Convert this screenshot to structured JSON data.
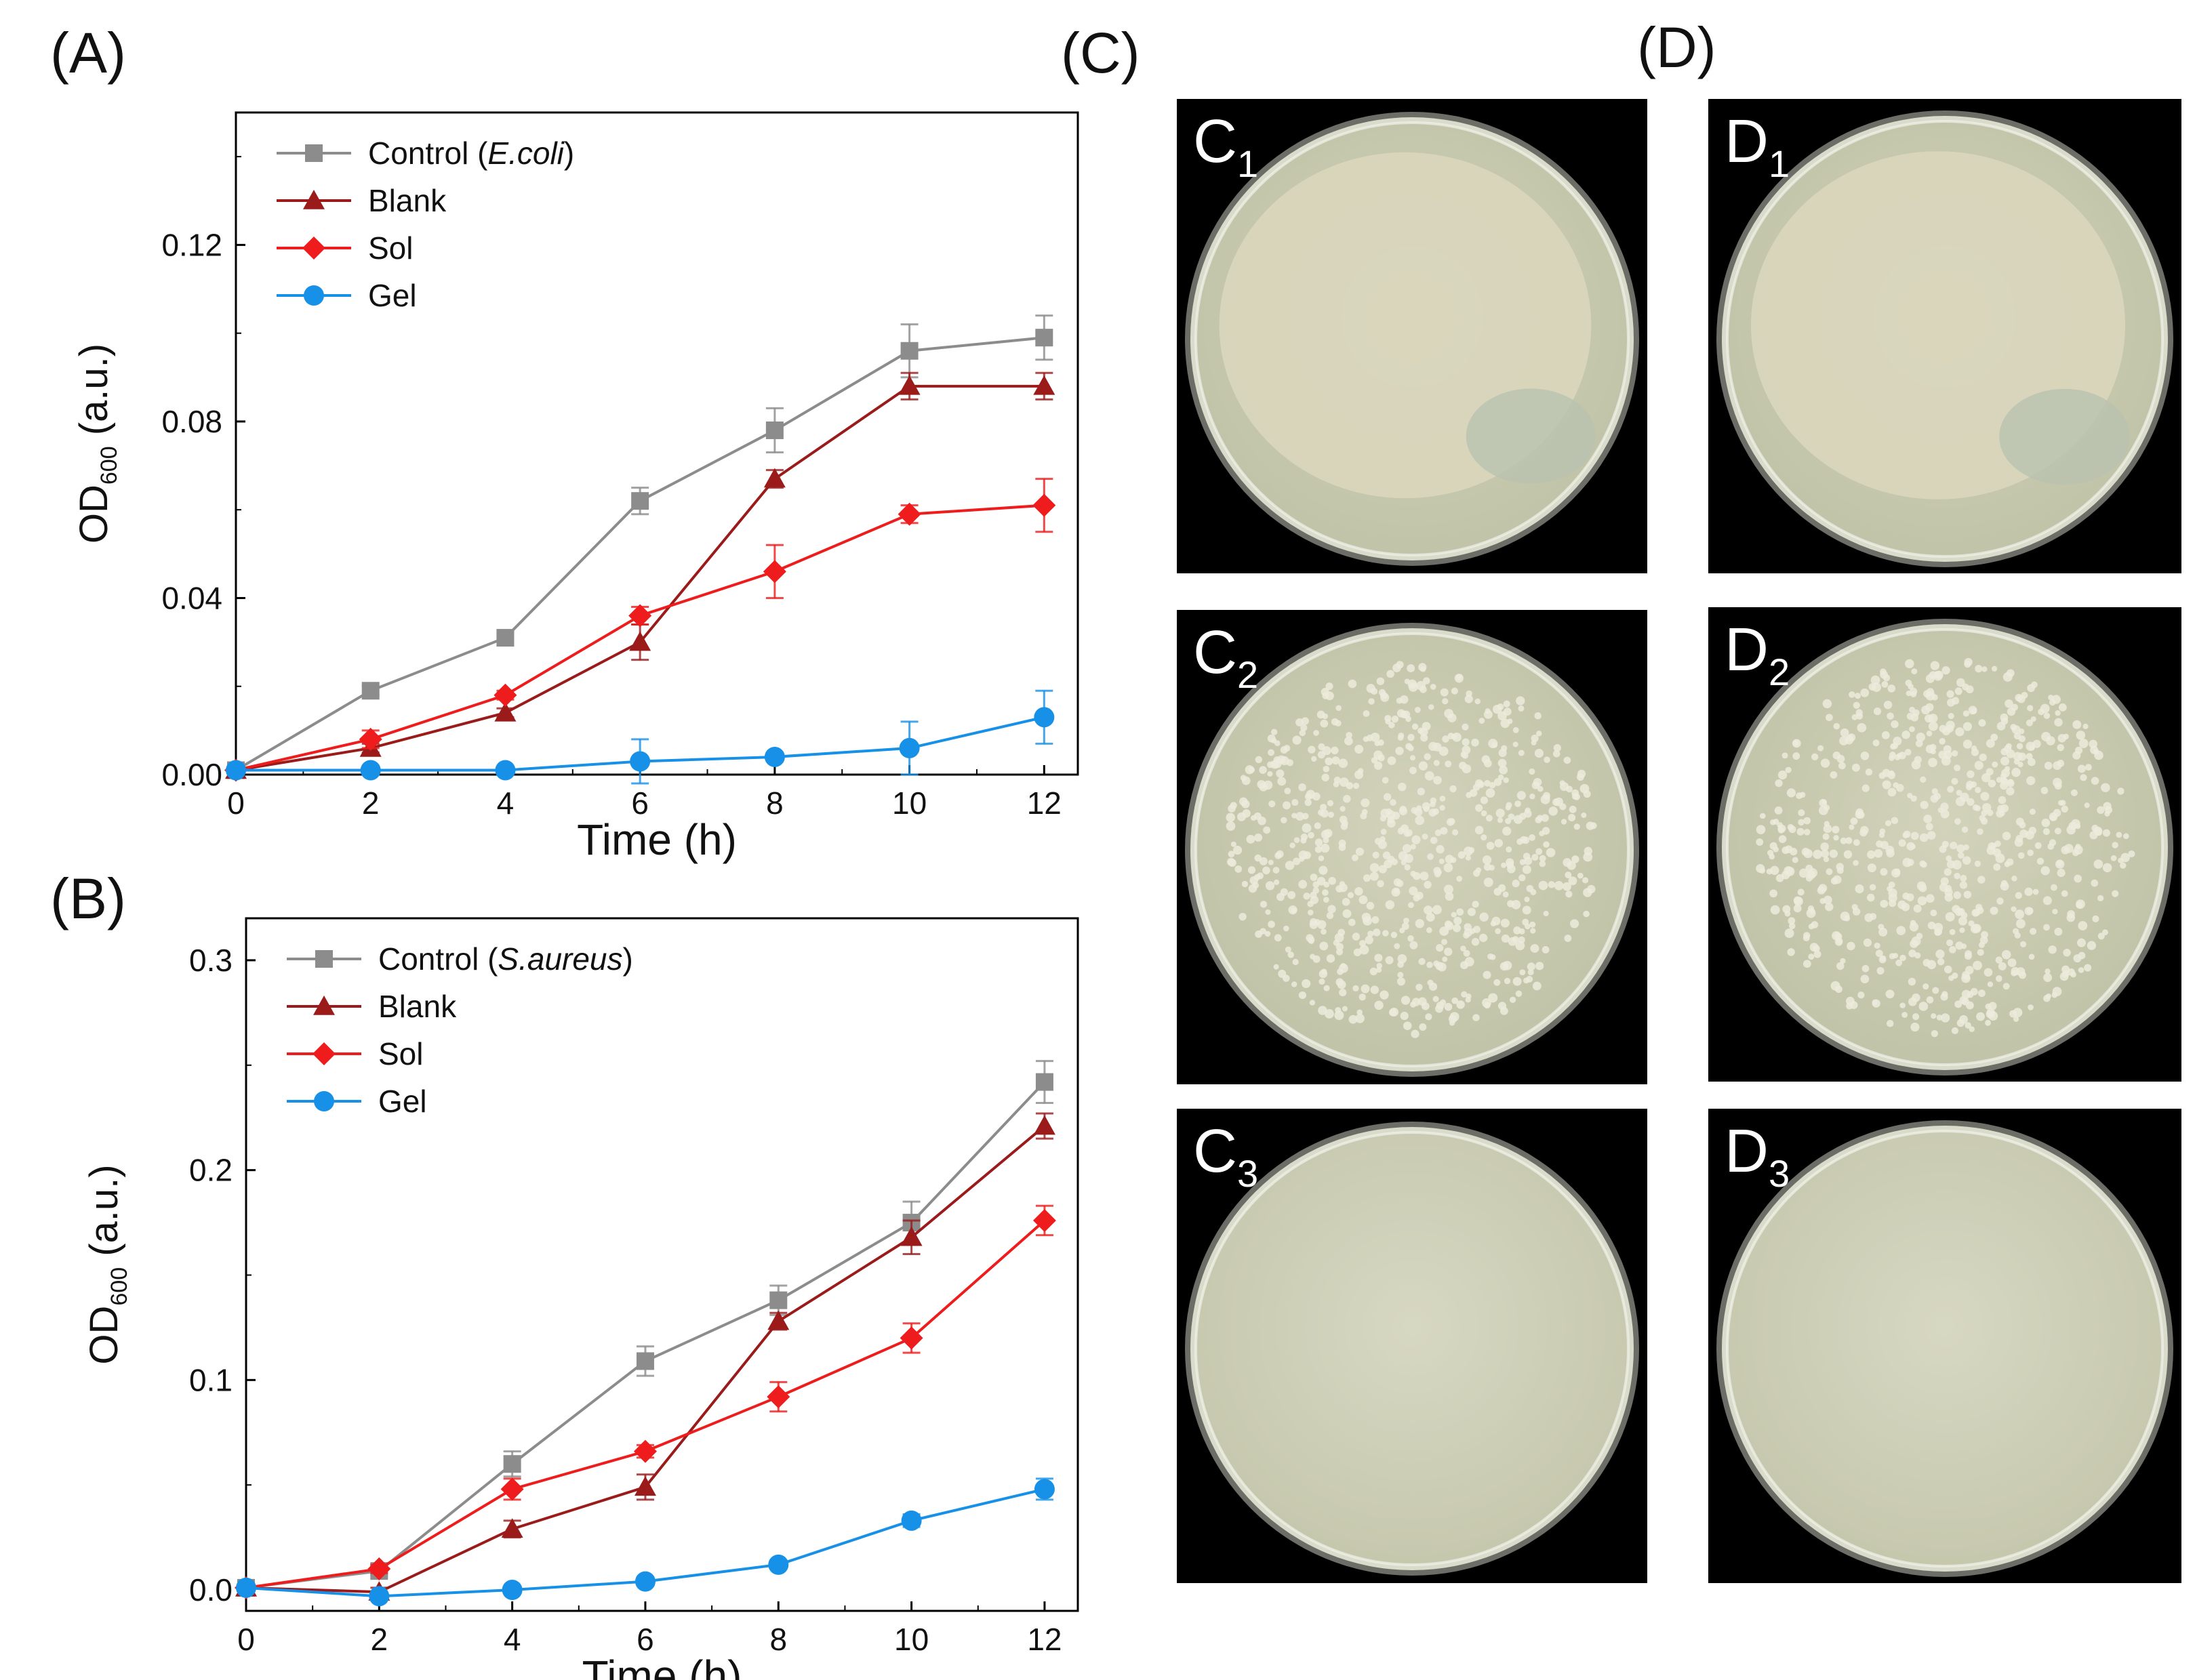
{
  "panel_labels": {
    "a": "(A)",
    "b": "(B)",
    "c": "(C)",
    "d": "(D)"
  },
  "colors": {
    "Control": "#8c8c8c",
    "Blank": "#9b1b1b",
    "Sol": "#ee1c1c",
    "Gel": "#1790e8"
  },
  "chart_data": [
    {
      "type": "line",
      "panel": "(A)",
      "xlabel": "Time (h)",
      "ylabel_main": "OD",
      "ylabel_sub": "600",
      "ylabel_tail": " (a.u.)",
      "xlim": [
        0,
        12.5
      ],
      "ylim": [
        0,
        0.15
      ],
      "xticks": [
        0,
        2,
        4,
        6,
        8,
        10,
        12
      ],
      "xtick_labels": [
        "0",
        "2",
        "4",
        "6",
        "8",
        "10",
        "12"
      ],
      "yticks": [
        0.0,
        0.04,
        0.08,
        0.12
      ],
      "ytick_labels": [
        "0.00",
        "0.04",
        "0.08",
        "0.12"
      ],
      "x": [
        0,
        2,
        4,
        6,
        8,
        10,
        12
      ],
      "legend": "top-left",
      "grid": false,
      "series": [
        {
          "name": "Control",
          "italic": "E.coli",
          "marker": "square",
          "color": "#8c8c8c",
          "values": [
            0.001,
            0.019,
            0.031,
            0.062,
            0.078,
            0.096,
            0.099
          ],
          "errors": [
            0,
            0.001,
            0.001,
            0.003,
            0.005,
            0.006,
            0.005
          ]
        },
        {
          "name": "Blank",
          "marker": "triangle",
          "color": "#9b1b1b",
          "values": [
            0.001,
            0.006,
            0.014,
            0.03,
            0.067,
            0.088,
            0.088
          ],
          "errors": [
            0,
            0.001,
            0.001,
            0.004,
            0.002,
            0.003,
            0.003
          ]
        },
        {
          "name": "Sol",
          "marker": "diamond",
          "color": "#ee1c1c",
          "values": [
            0.001,
            0.008,
            0.018,
            0.036,
            0.046,
            0.059,
            0.061
          ],
          "errors": [
            0,
            0.002,
            0.001,
            0.002,
            0.006,
            0.002,
            0.006
          ]
        },
        {
          "name": "Gel",
          "marker": "circle",
          "color": "#1790e8",
          "values": [
            0.001,
            0.001,
            0.001,
            0.003,
            0.004,
            0.006,
            0.013
          ],
          "errors": [
            0,
            0.001,
            0,
            0.005,
            0.001,
            0.006,
            0.006
          ]
        }
      ]
    },
    {
      "type": "line",
      "panel": "(B)",
      "xlabel": "Time (h)",
      "ylabel_main": "OD",
      "ylabel_sub": "600",
      "ylabel_tail": " (a.u.)",
      "xlim": [
        0,
        12.5
      ],
      "ylim": [
        -0.01,
        0.32
      ],
      "xticks": [
        0,
        2,
        4,
        6,
        8,
        10,
        12
      ],
      "xtick_labels": [
        "0",
        "2",
        "4",
        "6",
        "8",
        "10",
        "12"
      ],
      "yticks": [
        0.0,
        0.1,
        0.2,
        0.3
      ],
      "ytick_labels": [
        "0.0",
        "0.1",
        "0.2",
        "0.3"
      ],
      "x": [
        0,
        2,
        4,
        6,
        8,
        10,
        12
      ],
      "legend": "top-left",
      "grid": false,
      "series": [
        {
          "name": "Control",
          "italic": "S.aureus",
          "marker": "square",
          "color": "#8c8c8c",
          "values": [
            0.001,
            0.009,
            0.06,
            0.109,
            0.138,
            0.175,
            0.242
          ],
          "errors": [
            0,
            0.002,
            0.006,
            0.007,
            0.007,
            0.01,
            0.01
          ]
        },
        {
          "name": "Blank",
          "marker": "triangle",
          "color": "#9b1b1b",
          "values": [
            0.001,
            -0.001,
            0.029,
            0.049,
            0.128,
            0.168,
            0.221
          ],
          "errors": [
            0,
            0.002,
            0.004,
            0.006,
            0.004,
            0.008,
            0.006
          ]
        },
        {
          "name": "Sol",
          "marker": "diamond",
          "color": "#ee1c1c",
          "values": [
            0.001,
            0.01,
            0.048,
            0.066,
            0.092,
            0.12,
            0.176
          ],
          "errors": [
            0,
            0.002,
            0.005,
            0.003,
            0.007,
            0.007,
            0.007
          ]
        },
        {
          "name": "Gel",
          "marker": "circle",
          "color": "#1790e8",
          "values": [
            0.001,
            -0.003,
            0.0,
            0.004,
            0.012,
            0.033,
            0.048
          ],
          "errors": [
            0,
            0.001,
            0.001,
            0.002,
            0.002,
            0.003,
            0.005
          ]
        }
      ]
    }
  ],
  "plates": [
    {
      "letter": "C",
      "sub": "1",
      "group": "C",
      "growth": "lawn"
    },
    {
      "letter": "D",
      "sub": "1",
      "group": "D",
      "growth": "lawn"
    },
    {
      "letter": "C",
      "sub": "2",
      "group": "C",
      "growth": "colonies"
    },
    {
      "letter": "D",
      "sub": "2",
      "group": "D",
      "growth": "colonies"
    },
    {
      "letter": "C",
      "sub": "3",
      "group": "C",
      "growth": "clear"
    },
    {
      "letter": "D",
      "sub": "3",
      "group": "D",
      "growth": "clear"
    }
  ]
}
